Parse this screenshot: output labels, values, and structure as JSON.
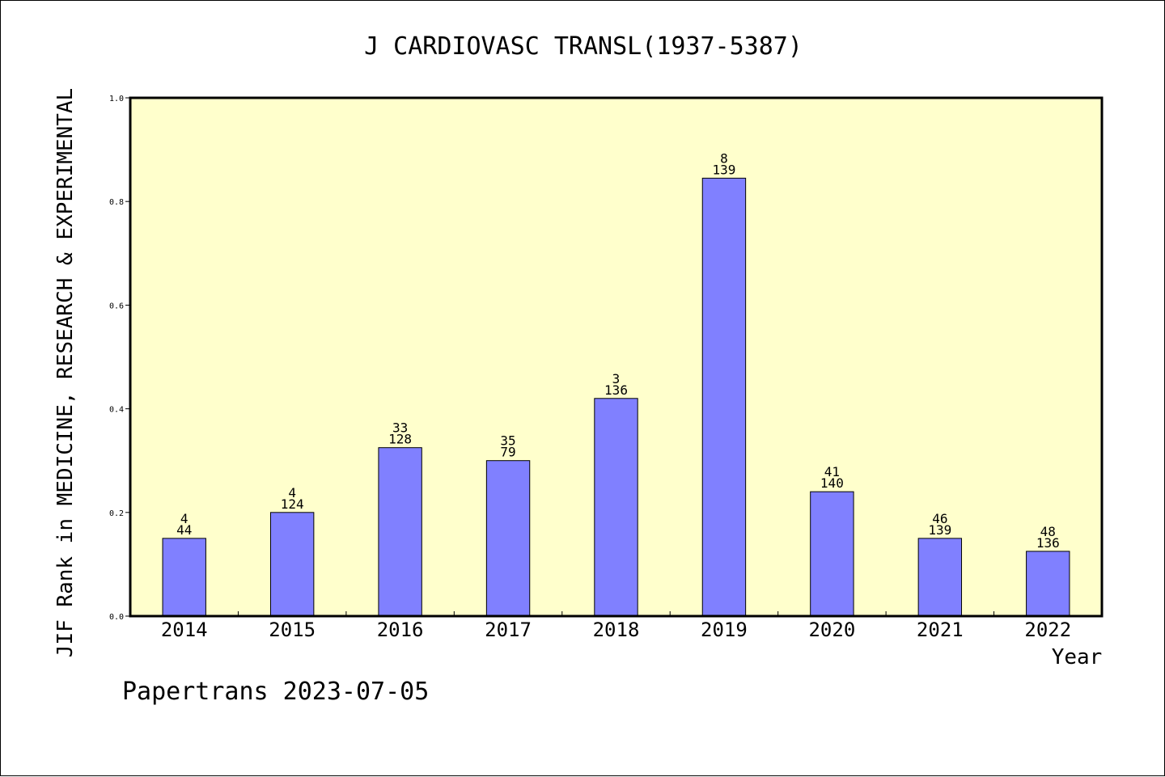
{
  "chart_data": {
    "type": "bar",
    "title": "J CARDIOVASC TRANSL(1937-5387)",
    "xlabel": "Year",
    "ylabel": "JIF Rank in MEDICINE, RESEARCH & EXPERIMENTAL",
    "ylim": [
      0,
      1.0
    ],
    "yticks": [
      "0.0",
      "0.2",
      "0.4",
      "0.6",
      "0.8",
      "1.0"
    ],
    "categories": [
      "2014",
      "2015",
      "2016",
      "2017",
      "2018",
      "2019",
      "2020",
      "2021",
      "2022"
    ],
    "values": [
      0.15,
      0.2,
      0.325,
      0.3,
      0.42,
      0.845,
      0.24,
      0.15,
      0.125
    ],
    "rank": [
      "4",
      "4",
      "33",
      "35",
      "3",
      "8",
      "41",
      "46",
      "48"
    ],
    "total": [
      "44",
      "124",
      "128",
      "79",
      "136",
      "139",
      "140",
      "139",
      "136"
    ],
    "grid": false,
    "colors": {
      "plot_bg": "#ffffcc",
      "bar": "#8080ff",
      "bar_stroke": "#000000"
    }
  },
  "footer": "Papertrans 2023-07-05"
}
